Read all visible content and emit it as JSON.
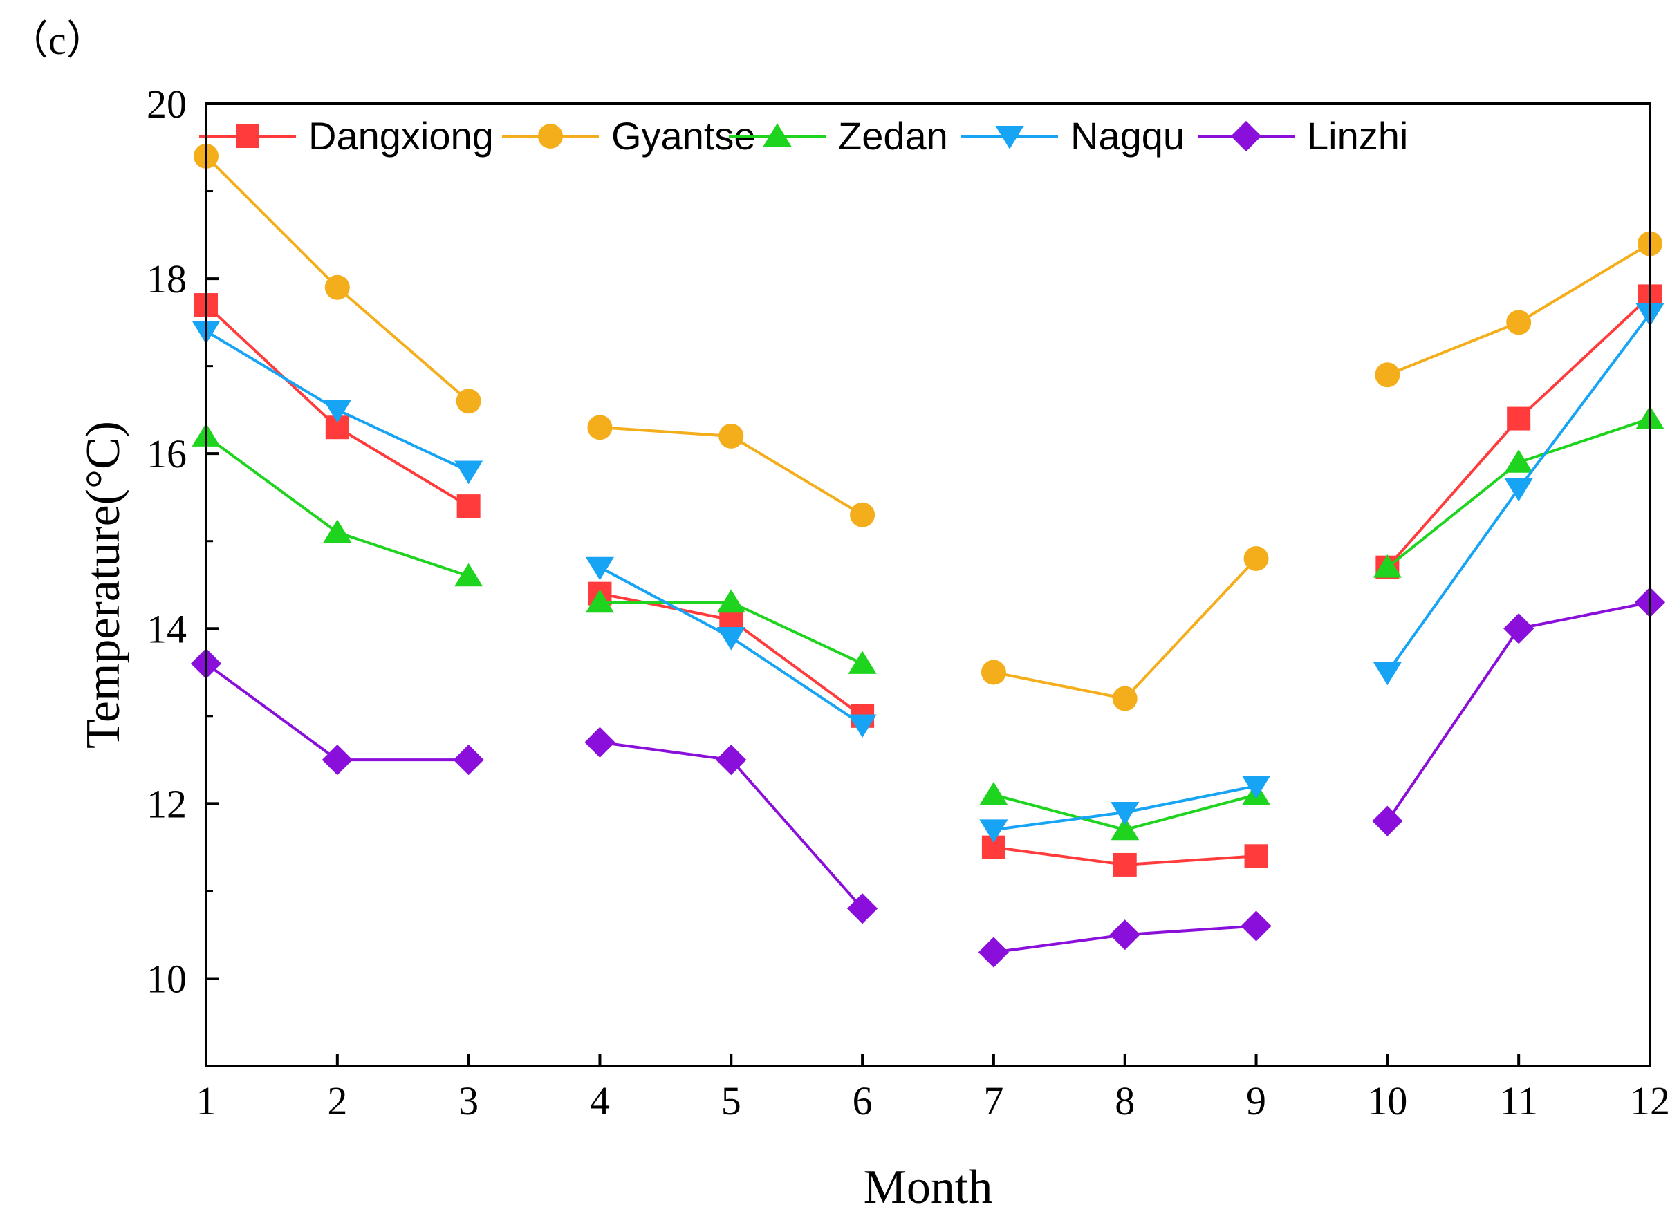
{
  "panel_label": "（c）",
  "chart_data": {
    "type": "line",
    "xlabel": "Month",
    "ylabel": "Temperature(°C)",
    "xlim": [
      1,
      12
    ],
    "ylim": [
      9,
      20
    ],
    "x_ticks": [
      1,
      2,
      3,
      4,
      5,
      6,
      7,
      8,
      9,
      10,
      11,
      12
    ],
    "y_ticks": [
      10,
      12,
      14,
      16,
      18,
      20
    ],
    "y_minor_step": 1,
    "grid": false,
    "legend_position": "top",
    "segments": [
      [
        1,
        3
      ],
      [
        4,
        6
      ],
      [
        7,
        9
      ],
      [
        10,
        12
      ]
    ],
    "series": [
      {
        "name": "Dangxiong",
        "color": "#FF3B3B",
        "marker": "square",
        "x": [
          1,
          2,
          3,
          4,
          5,
          6,
          7,
          8,
          9,
          10,
          11,
          12
        ],
        "values": [
          17.7,
          16.3,
          15.4,
          14.4,
          14.1,
          13.0,
          11.5,
          11.3,
          11.4,
          14.7,
          16.4,
          17.8
        ]
      },
      {
        "name": "Gyantse",
        "color": "#F5AE1B",
        "marker": "circle",
        "x": [
          1,
          2,
          3,
          4,
          5,
          6,
          7,
          8,
          9,
          10,
          11,
          12
        ],
        "values": [
          19.4,
          17.9,
          16.6,
          16.3,
          16.2,
          15.3,
          13.5,
          13.2,
          14.8,
          16.9,
          17.5,
          18.4
        ]
      },
      {
        "name": "Zedan",
        "color": "#1ED41E",
        "marker": "triangle-up",
        "x": [
          1,
          2,
          3,
          4,
          5,
          6,
          7,
          8,
          9,
          10,
          11,
          12
        ],
        "values": [
          16.2,
          15.1,
          14.6,
          14.3,
          14.3,
          13.6,
          12.1,
          11.7,
          12.1,
          14.7,
          15.9,
          16.4
        ]
      },
      {
        "name": "Nagqu",
        "color": "#18A4F5",
        "marker": "triangle-down",
        "x": [
          1,
          2,
          3,
          4,
          5,
          6,
          7,
          8,
          9,
          10,
          11,
          12
        ],
        "values": [
          17.4,
          16.5,
          15.8,
          14.7,
          13.9,
          12.9,
          11.7,
          11.9,
          12.2,
          13.5,
          15.6,
          17.6
        ]
      },
      {
        "name": "Linzhi",
        "color": "#8B0FDB",
        "marker": "diamond",
        "x": [
          1,
          2,
          3,
          4,
          5,
          6,
          7,
          8,
          9,
          10,
          11,
          12
        ],
        "values": [
          13.6,
          12.5,
          12.5,
          12.7,
          12.5,
          10.8,
          10.3,
          10.5,
          10.6,
          11.8,
          14.0,
          14.3
        ]
      }
    ]
  }
}
